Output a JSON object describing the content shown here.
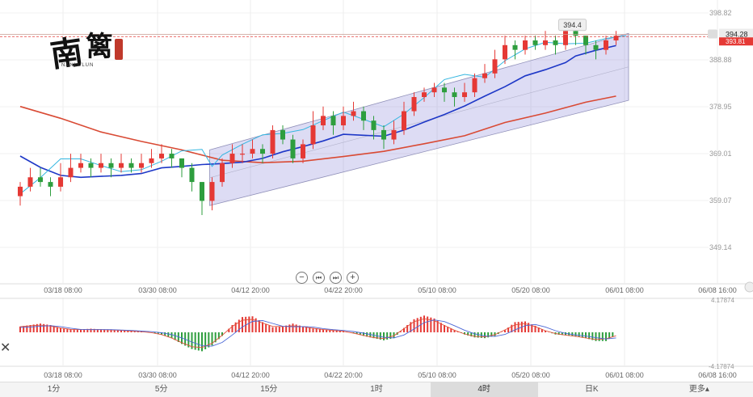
{
  "chart_data": [
    {
      "type": "candlestick",
      "x_ticks": [
        "03/18 08:00",
        "03/30 08:00",
        "04/12 20:00",
        "04/22 20:00",
        "05/10 08:00",
        "05/20 08:00",
        "06/01 08:00",
        "06/08 16:00"
      ],
      "y_ticks": [
        349.14,
        359.07,
        369.01,
        378.95,
        388.88,
        398.82
      ],
      "ylim": [
        344.5,
        402.0
      ],
      "peak_label": "394.4",
      "price_label": "394.28",
      "price_label_2": "393.81",
      "channel_upper": [
        [
          19,
          369.8
        ],
        [
          60,
          394.5
        ]
      ],
      "channel_lower": [
        [
          19,
          358.0
        ],
        [
          60,
          380.3
        ]
      ],
      "ma_slow": [
        [
          0,
          379
        ],
        [
          4,
          376.5
        ],
        [
          8,
          373.6
        ],
        [
          12,
          371.6
        ],
        [
          16,
          369.8
        ],
        [
          20,
          367.6
        ],
        [
          24,
          367.1
        ],
        [
          28,
          367.4
        ],
        [
          32,
          368.4
        ],
        [
          36,
          369.5
        ],
        [
          40,
          371.1
        ],
        [
          44,
          372.8
        ],
        [
          48,
          375.6
        ],
        [
          52,
          377.6
        ],
        [
          56,
          379.9
        ],
        [
          59,
          381.2
        ]
      ],
      "ma_medium": [
        [
          0,
          368.5
        ],
        [
          2,
          366.1
        ],
        [
          4,
          364.4
        ],
        [
          6,
          364.0
        ],
        [
          8,
          364.2
        ],
        [
          10,
          364.4
        ],
        [
          12,
          364.8
        ],
        [
          14,
          366.0
        ],
        [
          16,
          366.3
        ],
        [
          18,
          366.7
        ],
        [
          20,
          366.9
        ],
        [
          22,
          367.2
        ],
        [
          24,
          368.0
        ],
        [
          26,
          369.4
        ],
        [
          28,
          370.5
        ],
        [
          30,
          371.7
        ],
        [
          32,
          373.1
        ],
        [
          34,
          372.9
        ],
        [
          36,
          372.7
        ],
        [
          38,
          374.0
        ],
        [
          40,
          375.7
        ],
        [
          42,
          377.3
        ],
        [
          44,
          379.1
        ],
        [
          46,
          381.2
        ],
        [
          48,
          383.2
        ],
        [
          50,
          385.5
        ],
        [
          52,
          386.8
        ],
        [
          54,
          388.3
        ],
        [
          55,
          389.7
        ],
        [
          57,
          390.9
        ],
        [
          59,
          391.9
        ]
      ],
      "ma_fast": [
        [
          0,
          360.5
        ],
        [
          2,
          363.9
        ],
        [
          4,
          367.9
        ],
        [
          6,
          367.9
        ],
        [
          8,
          366.5
        ],
        [
          10,
          365.2
        ],
        [
          12,
          365.6
        ],
        [
          14,
          367.4
        ],
        [
          16,
          369.6
        ],
        [
          18,
          369.9
        ],
        [
          19,
          366.3
        ],
        [
          20,
          368.7
        ],
        [
          22,
          371.0
        ],
        [
          24,
          373.0
        ],
        [
          26,
          373.3
        ],
        [
          28,
          374.1
        ],
        [
          30,
          376.0
        ],
        [
          32,
          377.8
        ],
        [
          34,
          376.3
        ],
        [
          36,
          374.7
        ],
        [
          38,
          377.4
        ],
        [
          40,
          380.9
        ],
        [
          42,
          384.7
        ],
        [
          44,
          385.8
        ],
        [
          46,
          385.2
        ],
        [
          48,
          388.7
        ],
        [
          50,
          391.2
        ],
        [
          52,
          392.6
        ],
        [
          54,
          392.3
        ],
        [
          56,
          392.4
        ],
        [
          58,
          393.4
        ],
        [
          60,
          394.0
        ]
      ],
      "candles": [
        [
          0,
          360,
          362,
          363,
          358
        ],
        [
          1,
          362,
          364,
          366,
          361
        ],
        [
          2,
          364,
          363,
          366,
          362
        ],
        [
          3,
          363,
          362,
          364,
          360
        ],
        [
          4,
          362,
          364,
          367,
          361
        ],
        [
          5,
          364,
          366,
          369,
          363
        ],
        [
          6,
          366,
          367,
          369,
          365
        ],
        [
          7,
          367,
          366,
          368,
          364
        ],
        [
          8,
          366,
          367,
          369,
          365
        ],
        [
          9,
          367,
          366,
          368,
          364
        ],
        [
          10,
          366,
          367,
          369,
          365
        ],
        [
          11,
          367,
          366,
          368,
          365
        ],
        [
          12,
          366,
          367,
          369,
          365
        ],
        [
          13,
          367,
          368,
          370,
          366
        ],
        [
          14,
          368,
          369,
          371,
          367
        ],
        [
          15,
          369,
          368,
          370,
          366
        ],
        [
          16,
          368,
          366,
          368,
          364
        ],
        [
          17,
          366,
          363,
          367,
          361
        ],
        [
          18,
          363,
          359,
          363,
          356
        ],
        [
          19,
          359,
          363,
          364,
          357
        ],
        [
          20,
          363,
          367,
          368,
          362
        ],
        [
          21,
          367,
          369,
          371,
          366
        ],
        [
          22,
          369,
          369,
          371,
          367
        ],
        [
          23,
          369,
          370,
          372,
          368
        ],
        [
          24,
          370,
          369,
          371,
          367
        ],
        [
          25,
          369,
          374,
          375,
          368
        ],
        [
          26,
          374,
          372,
          375,
          371
        ],
        [
          27,
          372,
          368,
          373,
          367
        ],
        [
          28,
          368,
          371,
          372,
          367
        ],
        [
          29,
          371,
          375,
          378,
          370
        ],
        [
          30,
          375,
          377,
          379,
          374
        ],
        [
          31,
          377,
          375,
          378,
          373
        ],
        [
          32,
          375,
          377,
          379,
          374
        ],
        [
          33,
          377,
          378,
          380,
          376
        ],
        [
          34,
          378,
          376,
          379,
          374
        ],
        [
          35,
          376,
          374,
          377,
          372
        ],
        [
          36,
          374,
          372,
          375,
          370
        ],
        [
          37,
          372,
          374,
          376,
          371
        ],
        [
          38,
          374,
          378,
          380,
          373
        ],
        [
          39,
          378,
          381,
          382,
          377
        ],
        [
          40,
          381,
          382,
          383,
          380
        ],
        [
          41,
          382,
          383,
          384,
          381
        ],
        [
          42,
          383,
          382,
          384,
          380
        ],
        [
          43,
          382,
          381,
          383,
          379
        ],
        [
          44,
          381,
          382,
          384,
          380
        ],
        [
          45,
          382,
          385,
          386,
          381
        ],
        [
          46,
          385,
          386,
          388,
          384
        ],
        [
          47,
          386,
          389,
          391,
          385
        ],
        [
          48,
          389,
          392,
          394,
          388
        ],
        [
          49,
          392,
          391,
          393,
          389
        ],
        [
          50,
          391,
          393,
          394,
          390
        ],
        [
          51,
          393,
          392,
          394,
          391
        ],
        [
          52,
          392,
          393,
          395,
          391
        ],
        [
          53,
          393,
          392,
          394,
          390
        ],
        [
          54,
          392,
          395,
          396,
          391
        ],
        [
          55,
          395,
          394,
          396,
          392
        ],
        [
          56,
          394,
          392,
          394,
          390
        ],
        [
          57,
          392,
          391,
          393,
          389
        ],
        [
          58,
          391,
          393,
          394,
          390
        ],
        [
          59,
          393,
          394,
          395,
          392
        ]
      ],
      "indicator_ylabel_top": "4.17874",
      "indicator_ylabel_bottom": "-4.17874",
      "macd_hist": [
        0.8,
        1.0,
        1.2,
        1.0,
        0.6,
        0.4,
        0.4,
        0.5,
        0.4,
        0.4,
        0.3,
        0.2,
        0.1,
        0.0,
        -0.3,
        -0.8,
        -1.6,
        -2.3,
        -2.6,
        -1.8,
        -0.5,
        1.0,
        2.1,
        2.2,
        1.4,
        0.7,
        0.8,
        1.2,
        0.8,
        0.6,
        0.4,
        0.3,
        0.2,
        -0.1,
        -0.5,
        -0.8,
        -1.1,
        -0.8,
        0.6,
        1.8,
        2.3,
        1.9,
        1.0,
        0.3,
        -0.3,
        -0.7,
        -0.8,
        -0.5,
        0.3,
        1.4,
        1.5,
        0.9,
        0.2,
        -0.3,
        -0.4,
        -0.6,
        -0.8,
        -1.2,
        -1.2,
        -0.3
      ]
    }
  ],
  "logo": {
    "glyphs": "南篱",
    "subtitle": "NANLULUN"
  },
  "controls": {
    "zoom_out": "−",
    "prev": "⏮",
    "next": "⏭",
    "zoom_in": "+"
  },
  "close_label": "✕",
  "periods": [
    {
      "label": "1分",
      "active": false
    },
    {
      "label": "5分",
      "active": false
    },
    {
      "label": "15分",
      "active": false
    },
    {
      "label": "1时",
      "active": false
    },
    {
      "label": "4时",
      "active": true
    },
    {
      "label": "日K",
      "active": false
    },
    {
      "label": "更多▴",
      "active": false
    }
  ],
  "colors": {
    "up": "#e53935",
    "down": "#2e9e3e",
    "channel_fill": "#8583d6",
    "ma_slow": "#d94a34",
    "ma_medium": "#1e38c7",
    "ma_fast": "#33b6e0"
  }
}
